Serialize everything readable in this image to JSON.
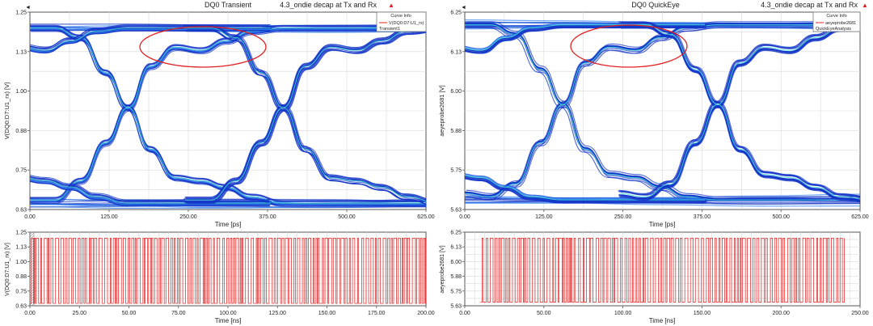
{
  "colors": {
    "eye_outer": "#1436c8",
    "eye_mid": "#2f7ff0",
    "eye_hot": "#3fe0d0",
    "wave": "#e31f1f",
    "annotation": "#e02020",
    "frame": "#555555",
    "grid": "#d9d9d9"
  },
  "panels": [
    {
      "title": "DQ0 Transient",
      "note": "4.3_ondie decap at Tx and Rx",
      "legend": {
        "header": "Curve Info",
        "line1": "V(DQ0:D7:U1_rx)",
        "line2": "Transient1"
      },
      "eye": {
        "ylabel": "V(DQ0:D7:U1_rx) [V]",
        "xlabel": "Time [ps]",
        "yticks": [
          "1.25",
          "1.13",
          "1.00",
          "0.88",
          "0.75",
          "0.63"
        ],
        "xticks": [
          "0.00",
          "125.00",
          "250.00",
          "375.00",
          "500.00",
          "625.00"
        ]
      },
      "wave": {
        "ylabel": "V(DQ0:D7:U1_rx) [V]",
        "xlabel": "Time [ns]",
        "yticks": [
          "1.25",
          "1.13",
          "1.00",
          "0.88",
          "0.75",
          "0.63"
        ],
        "xticks": [
          "0.00",
          "25.00",
          "50.00",
          "75.00",
          "100.00",
          "125.00",
          "150.00",
          "175.00",
          "200.00"
        ]
      }
    },
    {
      "title": "DQ0 QuickEye",
      "note": "4.3_ondie decap at Tx and Rx",
      "legend": {
        "header": "Curve Info",
        "line1": "aeyeprobe2681",
        "line2": "QuickEyeAnalysis"
      },
      "eye": {
        "ylabel": "aeyeprobe2681 [V]",
        "xlabel": "Time [ps]",
        "yticks": [
          "6.25",
          "6.13",
          "6.00",
          "5.88",
          "5.75",
          "5.63"
        ],
        "xticks": [
          "0.00",
          "125.00",
          "250.00",
          "375.00",
          "500.00",
          "625.00"
        ]
      },
      "wave": {
        "ylabel": "aeyeprobe2681 [V]",
        "xlabel": "Time [ns]",
        "yticks": [
          "6.25",
          "6.13",
          "6.00",
          "5.88",
          "5.75",
          "5.63"
        ],
        "xticks": [
          "0.00",
          "50.00",
          "100.00",
          "150.00",
          "200.00",
          "250.00"
        ]
      }
    }
  ],
  "chart_data": [
    {
      "type": "line",
      "title": "DQ0 Transient",
      "subtitle": "4.3_ondie decap at Tx and Rx",
      "xlabel": "Time [ps]",
      "ylabel": "V(DQ0:D7:U1_rx) [V]",
      "xlim": [
        0,
        625
      ],
      "ylim": [
        0.63,
        1.25
      ],
      "legend": "top-right",
      "series": [
        {
          "name": "V(DQ0:D7:U1_rx)",
          "x": [
            0,
            40,
            80,
            120,
            155,
            190,
            230,
            270,
            310,
            350,
            400,
            440,
            480,
            520,
            560,
            600,
            625
          ],
          "y_rising": [
            0.66,
            0.66,
            0.72,
            0.84,
            0.95,
            1.08,
            1.14,
            1.13,
            1.16,
            1.19,
            1.2,
            1.2,
            1.2,
            1.2,
            1.2,
            1.2,
            1.2
          ],
          "y_falling": [
            1.2,
            1.2,
            1.17,
            1.06,
            0.95,
            0.82,
            0.73,
            0.72,
            0.7,
            0.67,
            0.65,
            0.65,
            0.65,
            0.65,
            0.65,
            0.65,
            0.65
          ]
        }
      ],
      "annotations": [
        "ellipse around rising-edge plateau near 250 ps"
      ]
    },
    {
      "type": "line",
      "title": "DQ0 QuickEye",
      "subtitle": "4.3_ondie decap at Tx and Rx",
      "xlabel": "Time [ps]",
      "ylabel": "aeyeprobe2681 [V]",
      "xlim": [
        0,
        625
      ],
      "ylim": [
        5.63,
        6.25
      ],
      "legend": "top-right",
      "series": [
        {
          "name": "aeyeprobe2681",
          "x": [
            0,
            40,
            80,
            120,
            155,
            190,
            230,
            270,
            310,
            350,
            400,
            440,
            480,
            520,
            560,
            600,
            625
          ],
          "y_rising": [
            5.68,
            5.67,
            5.71,
            5.84,
            5.96,
            6.09,
            6.14,
            6.13,
            6.17,
            6.2,
            6.21,
            6.21,
            6.21,
            6.21,
            6.21,
            6.21,
            6.21
          ],
          "y_falling": [
            6.21,
            6.21,
            6.18,
            6.07,
            5.96,
            5.82,
            5.74,
            5.73,
            5.7,
            5.67,
            5.66,
            5.66,
            5.66,
            5.66,
            5.66,
            5.66,
            5.66
          ]
        }
      ],
      "annotations": [
        "ellipse around rising-edge plateau near 250 ps"
      ]
    },
    {
      "type": "line",
      "xlabel": "Time [ns]",
      "ylabel": "V(DQ0:D7:U1_rx) [V]",
      "xlim": [
        0,
        200
      ],
      "ylim": [
        0.63,
        1.25
      ],
      "series": [
        {
          "name": "",
          "x_start": 0,
          "x_end": 200,
          "high": 1.2,
          "low": 0.65
        }
      ]
    },
    {
      "type": "line",
      "xlabel": "Time [ns]",
      "ylabel": "aeyeprobe2681 [V]",
      "xlim": [
        0,
        250
      ],
      "ylim": [
        5.63,
        6.25
      ],
      "series": [
        {
          "name": "",
          "x_start": 10,
          "x_end": 240,
          "high": 6.2,
          "low": 5.66
        }
      ]
    }
  ]
}
